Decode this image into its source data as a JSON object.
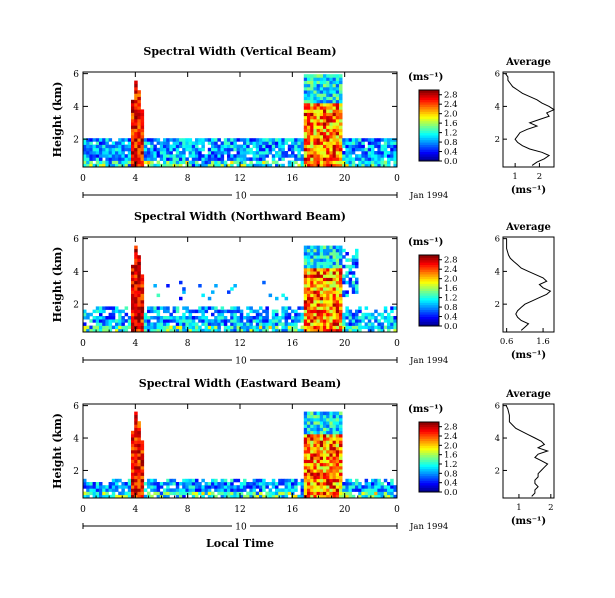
{
  "figure": {
    "xlabel": "Local Time",
    "date_label": "Jan 1994",
    "date_marker": "10",
    "cb_unit": "(ms⁻¹)",
    "avg_title": "Average",
    "avg_xlabel": "(ms⁻¹)"
  },
  "chart_data": [
    {
      "type": "heatmap",
      "title": "Spectral Width (Vertical Beam)",
      "ylabel": "Height (km)",
      "xlabel": "",
      "x_ticks": [
        "0",
        "4",
        "8",
        "12",
        "16",
        "20",
        "0"
      ],
      "x_range_hours": [
        0,
        24
      ],
      "y_ticks": [
        "2",
        "4",
        "6"
      ],
      "y_range_km": [
        0.3,
        6.1
      ],
      "colorbar": {
        "unit": "(ms⁻¹)",
        "ticks": [
          "0.0",
          "0.4",
          "0.8",
          "1.2",
          "1.6",
          "2.0",
          "2.4",
          "2.8"
        ],
        "range": [
          0,
          3.0
        ]
      },
      "average_profile": {
        "title": "Average",
        "x_ticks": [
          "1",
          "2"
        ],
        "x_range": [
          0.5,
          2.6
        ],
        "y_ticks": [
          "2",
          "4",
          "6"
        ],
        "y_range_km": [
          0.3,
          6.1
        ],
        "points": [
          [
            1.7,
            0.4
          ],
          [
            1.9,
            0.6
          ],
          [
            2.2,
            0.8
          ],
          [
            2.4,
            1.0
          ],
          [
            2.1,
            1.2
          ],
          [
            1.6,
            1.4
          ],
          [
            1.3,
            1.6
          ],
          [
            1.1,
            1.8
          ],
          [
            1.0,
            2.0
          ],
          [
            1.1,
            2.2
          ],
          [
            1.2,
            2.4
          ],
          [
            1.5,
            2.6
          ],
          [
            1.9,
            2.8
          ],
          [
            1.6,
            3.0
          ],
          [
            2.0,
            3.2
          ],
          [
            2.4,
            3.4
          ],
          [
            2.3,
            3.6
          ],
          [
            2.6,
            3.8
          ],
          [
            2.4,
            4.0
          ],
          [
            2.1,
            4.2
          ],
          [
            1.9,
            4.4
          ],
          [
            1.6,
            4.6
          ],
          [
            1.3,
            4.8
          ],
          [
            1.1,
            5.0
          ],
          [
            0.9,
            5.2
          ],
          [
            0.8,
            5.4
          ],
          [
            0.7,
            5.6
          ],
          [
            0.7,
            5.8
          ],
          [
            0.6,
            6.0
          ]
        ]
      },
      "colors": {
        "low": "#1d1b8f",
        "mid": "#35d0e8",
        "high": "#e8321b"
      }
    },
    {
      "type": "heatmap",
      "title": "Spectral Width (Northward Beam)",
      "ylabel": "Height (km)",
      "xlabel": "",
      "x_ticks": [
        "0",
        "4",
        "8",
        "12",
        "16",
        "20",
        "0"
      ],
      "x_range_hours": [
        0,
        24
      ],
      "y_ticks": [
        "2",
        "4",
        "6"
      ],
      "y_range_km": [
        0.3,
        6.1
      ],
      "colorbar": {
        "unit": "(ms⁻¹)",
        "ticks": [
          "0.0",
          "0.4",
          "0.8",
          "1.2",
          "1.6",
          "2.0",
          "2.4",
          "2.8"
        ],
        "range": [
          0,
          3.0
        ]
      },
      "average_profile": {
        "title": "Average",
        "x_ticks": [
          "0.6",
          "1.6"
        ],
        "x_range": [
          0.5,
          1.9
        ],
        "y_ticks": [
          "2",
          "4",
          "6"
        ],
        "y_range_km": [
          0.3,
          6.1
        ],
        "points": [
          [
            1.0,
            0.4
          ],
          [
            1.1,
            0.6
          ],
          [
            1.2,
            0.8
          ],
          [
            1.0,
            1.0
          ],
          [
            0.9,
            1.2
          ],
          [
            0.85,
            1.4
          ],
          [
            0.9,
            1.6
          ],
          [
            1.0,
            1.8
          ],
          [
            1.1,
            2.0
          ],
          [
            1.3,
            2.2
          ],
          [
            1.5,
            2.4
          ],
          [
            1.7,
            2.6
          ],
          [
            1.8,
            2.8
          ],
          [
            1.6,
            3.0
          ],
          [
            1.5,
            3.2
          ],
          [
            1.7,
            3.4
          ],
          [
            1.6,
            3.6
          ],
          [
            1.4,
            3.8
          ],
          [
            1.2,
            4.0
          ],
          [
            1.0,
            4.2
          ],
          [
            0.9,
            4.4
          ],
          [
            0.8,
            4.6
          ],
          [
            0.7,
            4.8
          ],
          [
            0.65,
            5.0
          ],
          [
            0.6,
            5.4
          ],
          [
            0.6,
            5.8
          ],
          [
            0.6,
            6.0
          ]
        ]
      },
      "colors": {
        "low": "#1d1b8f",
        "mid": "#35d0e8",
        "high": "#e8321b"
      }
    },
    {
      "type": "heatmap",
      "title": "Spectral Width (Eastward Beam)",
      "ylabel": "Height (km)",
      "xlabel": "Local Time",
      "x_ticks": [
        "0",
        "4",
        "8",
        "12",
        "16",
        "20",
        "0"
      ],
      "x_range_hours": [
        0,
        24
      ],
      "y_ticks": [
        "2",
        "4",
        "6"
      ],
      "y_range_km": [
        0.3,
        6.1
      ],
      "colorbar": {
        "unit": "(ms⁻¹)",
        "ticks": [
          "0.0",
          "0.4",
          "0.8",
          "1.2",
          "1.6",
          "2.0",
          "2.4",
          "2.8"
        ],
        "range": [
          0,
          3.0
        ]
      },
      "average_profile": {
        "title": "Average",
        "x_ticks": [
          "1",
          "2"
        ],
        "x_range": [
          0.5,
          2.1
        ],
        "y_ticks": [
          "2",
          "4",
          "6"
        ],
        "y_range_km": [
          0.3,
          6.1
        ],
        "points": [
          [
            1.4,
            0.4
          ],
          [
            1.5,
            0.6
          ],
          [
            1.5,
            0.8
          ],
          [
            1.6,
            1.0
          ],
          [
            1.5,
            1.2
          ],
          [
            1.5,
            1.4
          ],
          [
            1.6,
            1.6
          ],
          [
            1.6,
            1.8
          ],
          [
            1.7,
            2.0
          ],
          [
            1.8,
            2.2
          ],
          [
            1.9,
            2.4
          ],
          [
            1.7,
            2.6
          ],
          [
            1.5,
            2.8
          ],
          [
            1.6,
            3.0
          ],
          [
            1.9,
            3.2
          ],
          [
            1.6,
            3.4
          ],
          [
            1.8,
            3.6
          ],
          [
            1.7,
            3.8
          ],
          [
            1.5,
            4.0
          ],
          [
            1.3,
            4.2
          ],
          [
            1.1,
            4.4
          ],
          [
            0.9,
            4.6
          ],
          [
            0.8,
            4.8
          ],
          [
            0.7,
            5.0
          ],
          [
            0.7,
            5.4
          ],
          [
            0.65,
            5.8
          ],
          [
            0.6,
            6.0
          ]
        ]
      },
      "colors": {
        "low": "#1d1b8f",
        "mid": "#35d0e8",
        "high": "#e8321b"
      }
    }
  ]
}
